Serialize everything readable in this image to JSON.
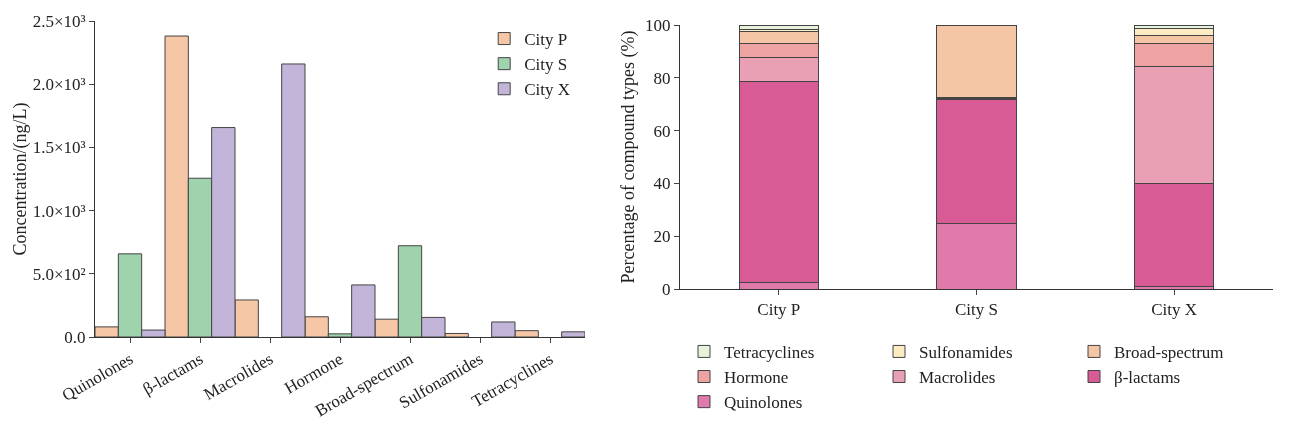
{
  "chart_data": [
    {
      "type": "bar",
      "ylabel": "Concentration/(ng/L)",
      "categories": [
        "Quinolones",
        "β-lactams",
        "Macrolides",
        "Hormone",
        "Broad-spectrum",
        "Sulfonamides",
        "Tetracyclines"
      ],
      "series": [
        {
          "name": "City P",
          "color": "#f6c7a6",
          "values": [
            80,
            2381,
            293,
            160,
            141,
            28,
            50
          ]
        },
        {
          "name": "City S",
          "color": "#9fd3ae",
          "values": [
            658,
            1256,
            0,
            25,
            722,
            0,
            0
          ]
        },
        {
          "name": "City X",
          "color": "#c3b5da",
          "values": [
            55,
            1657,
            2160,
            412,
            155,
            119,
            41
          ]
        }
      ],
      "ylim": [
        0,
        2500
      ],
      "yticks": [
        {
          "value": 0,
          "label": "0.0"
        },
        {
          "value": 500,
          "label": "5.0×10²"
        },
        {
          "value": 1000,
          "label": "1.0×10³"
        },
        {
          "value": 1500,
          "label": "1.5×10³"
        },
        {
          "value": 2000,
          "label": "2.0×10³"
        },
        {
          "value": 2500,
          "label": "2.5×10³"
        }
      ],
      "grid": false,
      "legend": "top right"
    },
    {
      "type": "bar",
      "stacked": true,
      "ylabel": "Percentage of compound types (%)",
      "categories": [
        "City P",
        "City S",
        "City X"
      ],
      "series": [
        {
          "name": "Quinolones",
          "color": "#e07aaa",
          "values": [
            2.4,
            24.7,
            1.1
          ]
        },
        {
          "name": "β-lactams",
          "color": "#d95b96",
          "values": [
            76.1,
            47.1,
            38.9
          ]
        },
        {
          "name": "Macrolides",
          "color": "#e9a0b4",
          "values": [
            9.3,
            0.4,
            44.1
          ]
        },
        {
          "name": "Hormone",
          "color": "#eea3a3",
          "values": [
            5.2,
            0.3,
            8.9
          ]
        },
        {
          "name": "Broad-spectrum",
          "color": "#f5c6a5",
          "values": [
            4.4,
            27.5,
            3.1
          ]
        },
        {
          "name": "Sulfonamides",
          "color": "#fbecc3",
          "values": [
            0.8,
            0,
            2.4
          ]
        },
        {
          "name": "Tetracyclines",
          "color": "#e6f2dc",
          "values": [
            1.8,
            0,
            1.5
          ]
        }
      ],
      "ylim": [
        0,
        100
      ],
      "yticks": [
        0,
        20,
        40,
        60,
        80,
        100
      ],
      "grid": false,
      "legend": "bottom"
    }
  ]
}
